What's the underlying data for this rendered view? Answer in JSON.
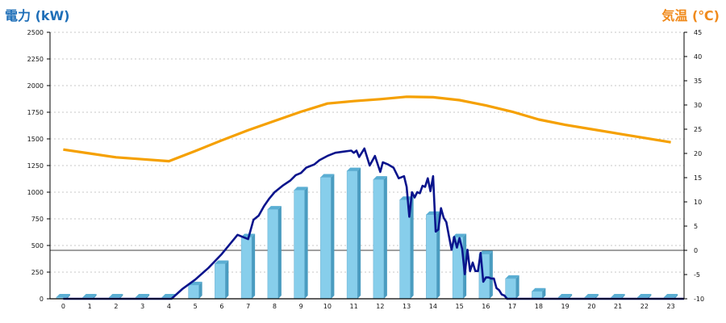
{
  "chart_data": {
    "type": "bar",
    "ylabel_left": "電力 (kW)",
    "ylabel_right": "気温 (℃)",
    "categories": [
      "0",
      "1",
      "2",
      "3",
      "4",
      "5",
      "6",
      "7",
      "8",
      "9",
      "10",
      "11",
      "12",
      "13",
      "14",
      "15",
      "16",
      "17",
      "18",
      "19",
      "20",
      "21",
      "22",
      "23"
    ],
    "yleft_lim": [
      0,
      2500
    ],
    "yleft_ticks": [
      "0",
      "250",
      "500",
      "750",
      "1000",
      "1250",
      "1500",
      "1750",
      "2000",
      "2250",
      "2500"
    ],
    "yright_lim": [
      -10,
      45
    ],
    "yright_ticks": [
      "-10",
      "-5",
      "0",
      "5",
      "10",
      "15",
      "20",
      "25",
      "30",
      "35",
      "40",
      "45"
    ],
    "grid": true,
    "colors": {
      "bar_front": "#87ceeb",
      "bar_side": "#4a9cc0",
      "bar_top": "#5aaed3",
      "power_line": "#0a148c",
      "temp_line": "#f5a000",
      "zero_line": "#000000"
    },
    "series": [
      {
        "kind": "bar",
        "axis": "left",
        "values": [
          15,
          15,
          15,
          15,
          15,
          130,
          330,
          580,
          840,
          1020,
          1140,
          1200,
          1120,
          930,
          790,
          580,
          420,
          190,
          70,
          15,
          15,
          15,
          15,
          15
        ]
      },
      {
        "kind": "line",
        "axis": "left",
        "x": [
          0,
          4.1,
          4.5,
          5,
          5.5,
          6,
          6.3,
          6.6,
          6.9,
          7.0,
          7.2,
          7.4,
          7.6,
          7.8,
          8,
          8.3,
          8.6,
          8.8,
          9,
          9.2,
          9.5,
          9.7,
          10,
          10.3,
          10.6,
          10.9,
          11.0,
          11.1,
          11.2,
          11.4,
          11.6,
          11.8,
          12.0,
          12.1,
          12.3,
          12.5,
          12.7,
          12.9,
          13.0,
          13.1,
          13.2,
          13.3,
          13.4,
          13.5,
          13.6,
          13.7,
          13.8,
          13.9,
          14.0,
          14.1,
          14.2,
          14.3,
          14.4,
          14.5,
          14.6,
          14.7,
          14.8,
          14.9,
          15.0,
          15.1,
          15.2,
          15.3,
          15.4,
          15.5,
          15.6,
          15.7,
          15.8,
          15.9,
          16.0,
          16.1,
          16.2,
          16.3,
          16.4,
          16.5,
          16.6,
          16.7,
          16.8,
          16.9,
          17.0,
          17.5,
          17.9,
          18.1,
          18.5,
          23.5
        ],
        "values": [
          0,
          0,
          90,
          180,
          290,
          420,
          510,
          600,
          570,
          560,
          740,
          780,
          870,
          940,
          1000,
          1060,
          1110,
          1160,
          1180,
          1230,
          1260,
          1300,
          1340,
          1370,
          1380,
          1390,
          1370,
          1390,
          1330,
          1410,
          1250,
          1340,
          1190,
          1280,
          1260,
          1230,
          1130,
          1150,
          1050,
          770,
          1000,
          950,
          1000,
          990,
          1060,
          1050,
          1130,
          1010,
          1150,
          630,
          650,
          850,
          760,
          720,
          590,
          460,
          580,
          480,
          570,
          470,
          230,
          460,
          260,
          340,
          260,
          260,
          430,
          160,
          200,
          200,
          190,
          190,
          100,
          80,
          40,
          30,
          0,
          0,
          0,
          0,
          0,
          0,
          0,
          0
        ],
        "values_note": ""
      },
      {
        "kind": "line",
        "axis": "right",
        "x": [
          0,
          1,
          2,
          3,
          4,
          5,
          6,
          7,
          8,
          9,
          10,
          11,
          12,
          13,
          14,
          15,
          16,
          17,
          18,
          19,
          20,
          21,
          22,
          23
        ],
        "values": [
          20.8,
          20.0,
          19.2,
          18.8,
          18.4,
          20.5,
          22.7,
          24.8,
          26.7,
          28.6,
          30.3,
          30.8,
          31.2,
          31.7,
          31.6,
          31.0,
          29.9,
          28.6,
          27.0,
          25.9,
          25.0,
          24.1,
          23.2,
          22.3
        ]
      }
    ]
  }
}
